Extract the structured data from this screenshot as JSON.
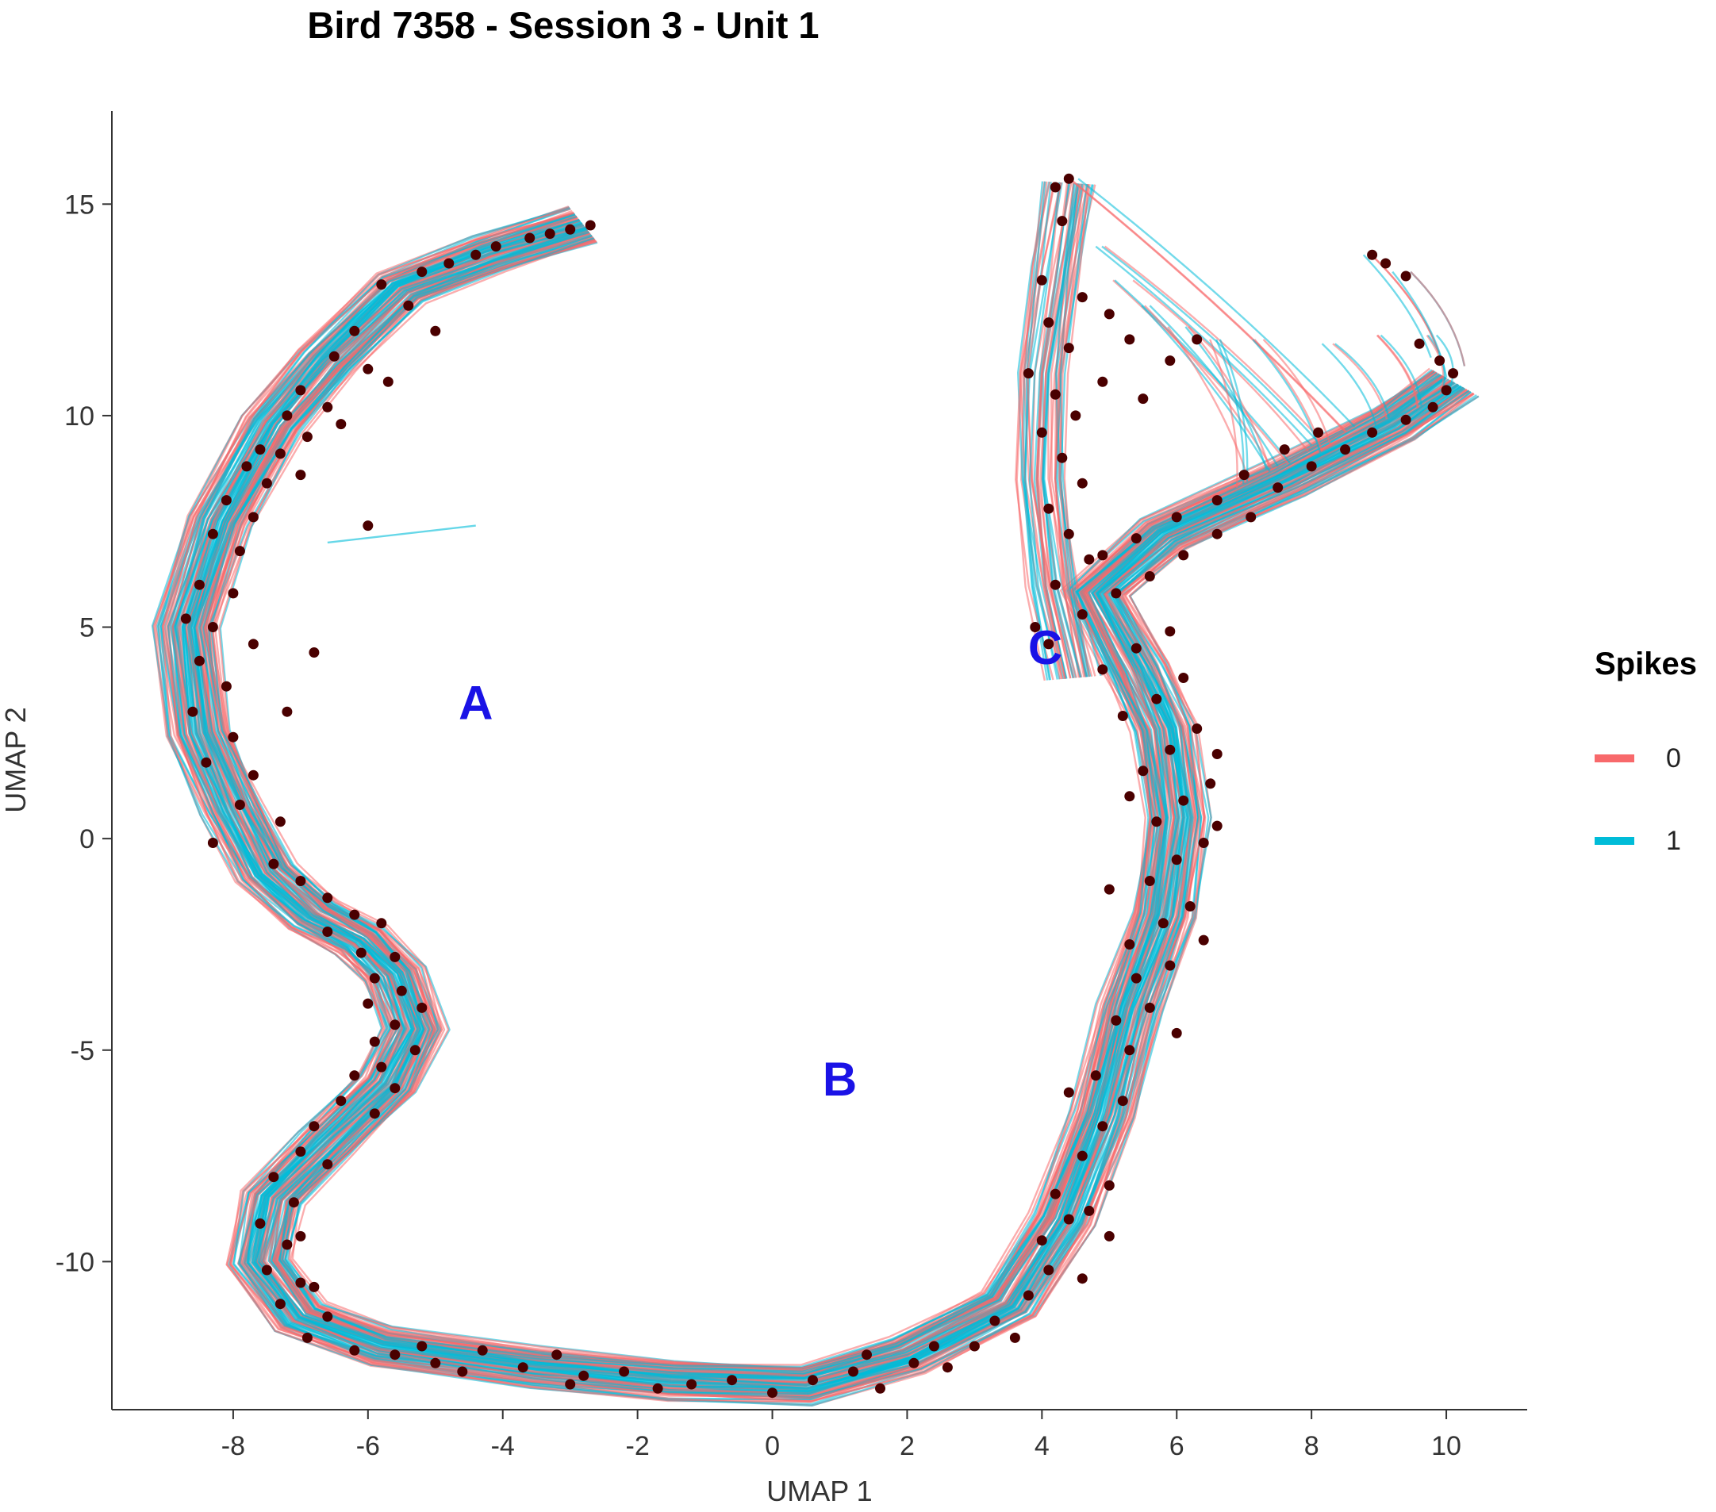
{
  "chart_data": {
    "type": "line",
    "title": "Bird 7358 - Session 3 - Unit 1",
    "xlabel": "UMAP 1",
    "ylabel": "UMAP 2",
    "xlim": [
      -9.8,
      11.2
    ],
    "ylim": [
      -13.5,
      17.2
    ],
    "x_ticks": [
      -8,
      -6,
      -4,
      -2,
      0,
      2,
      4,
      6,
      8,
      10
    ],
    "y_ticks": [
      -10,
      -5,
      0,
      5,
      10,
      15
    ],
    "grid": false,
    "legend": {
      "title": "Spikes",
      "position": "right",
      "entries": [
        {
          "label": "0",
          "color": "#f8696b"
        },
        {
          "label": "1",
          "color": "#00bcd8"
        }
      ]
    },
    "point_color": "#4a0000",
    "trajectory_spread": 0.42,
    "series": [
      {
        "name": "0",
        "color": "#f8696b",
        "path": [
          [
            -2.8,
            14.5
          ],
          [
            -4.2,
            13.8
          ],
          [
            -5.5,
            13.0
          ],
          [
            -6.6,
            11.3
          ],
          [
            -7.4,
            9.8
          ],
          [
            -8.2,
            7.5
          ],
          [
            -8.7,
            5.0
          ],
          [
            -8.5,
            2.5
          ],
          [
            -8.0,
            0.7
          ],
          [
            -7.5,
            -0.8
          ],
          [
            -6.8,
            -1.8
          ],
          [
            -6.1,
            -2.4
          ],
          [
            -5.6,
            -3.2
          ],
          [
            -5.3,
            -4.5
          ],
          [
            -5.7,
            -5.8
          ],
          [
            -6.6,
            -7.2
          ],
          [
            -7.4,
            -8.5
          ],
          [
            -7.6,
            -10.0
          ],
          [
            -7.0,
            -11.3
          ],
          [
            -5.8,
            -12.0
          ],
          [
            -3.5,
            -12.5
          ],
          [
            -1.5,
            -12.8
          ],
          [
            0.5,
            -12.9
          ],
          [
            2.0,
            -12.2
          ],
          [
            3.5,
            -11.0
          ],
          [
            4.3,
            -9.0
          ],
          [
            4.9,
            -6.5
          ],
          [
            5.3,
            -4.0
          ],
          [
            5.8,
            -1.8
          ],
          [
            6.0,
            0.5
          ],
          [
            5.8,
            2.6
          ],
          [
            5.4,
            4.0
          ],
          [
            4.8,
            5.8
          ],
          [
            5.8,
            7.2
          ],
          [
            7.6,
            8.5
          ],
          [
            9.2,
            9.8
          ],
          [
            10.1,
            10.8
          ]
        ]
      },
      {
        "name": "0",
        "color": "#f8696b",
        "path": [
          [
            4.5,
            3.8
          ],
          [
            4.2,
            6.0
          ],
          [
            4.0,
            8.5
          ],
          [
            4.0,
            11.0
          ],
          [
            4.2,
            13.5
          ],
          [
            4.4,
            15.5
          ]
        ]
      },
      {
        "name": "1",
        "color": "#00bcd8",
        "path": [
          [
            -2.8,
            14.5
          ],
          [
            -4.2,
            13.8
          ],
          [
            -5.5,
            13.0
          ],
          [
            -6.6,
            11.3
          ],
          [
            -7.4,
            9.8
          ],
          [
            -8.2,
            7.5
          ],
          [
            -8.7,
            5.0
          ],
          [
            -8.5,
            2.5
          ],
          [
            -8.0,
            0.7
          ],
          [
            -7.5,
            -0.8
          ],
          [
            -6.8,
            -1.8
          ],
          [
            -6.1,
            -2.4
          ],
          [
            -5.6,
            -3.2
          ],
          [
            -5.3,
            -4.5
          ],
          [
            -5.7,
            -5.8
          ],
          [
            -6.6,
            -7.2
          ],
          [
            -7.4,
            -8.5
          ],
          [
            -7.6,
            -10.0
          ],
          [
            -7.0,
            -11.3
          ],
          [
            -5.8,
            -12.0
          ],
          [
            -3.5,
            -12.5
          ],
          [
            -1.5,
            -12.8
          ],
          [
            0.5,
            -12.9
          ],
          [
            2.0,
            -12.2
          ],
          [
            3.5,
            -11.0
          ],
          [
            4.3,
            -9.0
          ],
          [
            4.9,
            -6.5
          ],
          [
            5.3,
            -4.0
          ],
          [
            5.8,
            -1.8
          ],
          [
            6.0,
            0.5
          ],
          [
            5.8,
            2.6
          ],
          [
            5.4,
            4.0
          ],
          [
            4.8,
            5.8
          ],
          [
            5.8,
            7.2
          ],
          [
            7.6,
            8.5
          ],
          [
            9.2,
            9.8
          ],
          [
            10.1,
            10.8
          ]
        ]
      },
      {
        "name": "1",
        "color": "#00bcd8",
        "path": [
          [
            4.5,
            3.8
          ],
          [
            4.2,
            6.0
          ],
          [
            4.0,
            8.5
          ],
          [
            4.0,
            11.0
          ],
          [
            4.2,
            13.5
          ],
          [
            4.4,
            15.5
          ]
        ]
      }
    ],
    "fan_segments": [
      {
        "from": [
          4.4,
          15.6
        ],
        "to": [
          8.5,
          9.6
        ]
      },
      {
        "from": [
          4.8,
          14.0
        ],
        "to": [
          8.0,
          9.3
        ]
      },
      {
        "from": [
          5.2,
          13.2
        ],
        "to": [
          7.8,
          9.0
        ]
      },
      {
        "from": [
          5.6,
          12.6
        ],
        "to": [
          7.5,
          8.8
        ]
      },
      {
        "from": [
          6.0,
          12.1
        ],
        "to": [
          7.2,
          8.6
        ]
      },
      {
        "from": [
          6.6,
          11.8
        ],
        "to": [
          7.0,
          8.4
        ]
      },
      {
        "from": [
          7.2,
          11.8
        ],
        "to": [
          8.2,
          9.2
        ]
      },
      {
        "from": [
          8.2,
          11.7
        ],
        "to": [
          9.0,
          9.8
        ]
      },
      {
        "from": [
          9.0,
          11.9
        ],
        "to": [
          9.6,
          10.2
        ]
      },
      {
        "from": [
          9.8,
          11.9
        ],
        "to": [
          10.0,
          10.6
        ]
      },
      {
        "from": [
          8.9,
          13.8
        ],
        "to": [
          9.9,
          11.5
        ]
      },
      {
        "from": [
          9.3,
          13.4
        ],
        "to": [
          10.1,
          11.0
        ]
      }
    ],
    "stray_segment": {
      "from": [
        -6.6,
        7.0
      ],
      "to": [
        -4.4,
        7.4
      ]
    },
    "spike_points": [
      [
        -2.7,
        14.5
      ],
      [
        -3.0,
        14.4
      ],
      [
        -3.3,
        14.3
      ],
      [
        -3.6,
        14.2
      ],
      [
        -4.1,
        14.0
      ],
      [
        -4.4,
        13.8
      ],
      [
        -4.8,
        13.6
      ],
      [
        -5.2,
        13.4
      ],
      [
        -5.8,
        13.1
      ],
      [
        -5.4,
        12.6
      ],
      [
        -6.2,
        12.0
      ],
      [
        -6.5,
        11.4
      ],
      [
        -6.0,
        11.1
      ],
      [
        -7.0,
        10.6
      ],
      [
        -6.6,
        10.2
      ],
      [
        -7.2,
        10.0
      ],
      [
        -6.4,
        9.8
      ],
      [
        -6.9,
        9.5
      ],
      [
        -7.6,
        9.2
      ],
      [
        -7.3,
        9.1
      ],
      [
        -7.8,
        8.8
      ],
      [
        -7.0,
        8.6
      ],
      [
        -7.5,
        8.4
      ],
      [
        -8.1,
        8.0
      ],
      [
        -7.7,
        7.6
      ],
      [
        -8.3,
        7.2
      ],
      [
        -7.9,
        6.8
      ],
      [
        -8.5,
        6.0
      ],
      [
        -8.0,
        5.8
      ],
      [
        -8.7,
        5.2
      ],
      [
        -8.3,
        5.0
      ],
      [
        -7.7,
        4.6
      ],
      [
        -8.5,
        4.2
      ],
      [
        -8.1,
        3.6
      ],
      [
        -8.6,
        3.0
      ],
      [
        -8.0,
        2.4
      ],
      [
        -8.4,
        1.8
      ],
      [
        -7.7,
        1.5
      ],
      [
        -7.9,
        0.8
      ],
      [
        -7.3,
        0.4
      ],
      [
        -8.3,
        -0.1
      ],
      [
        -7.4,
        -0.6
      ],
      [
        -7.0,
        -1.0
      ],
      [
        -6.6,
        -1.4
      ],
      [
        -6.2,
        -1.8
      ],
      [
        -6.6,
        -2.2
      ],
      [
        -5.8,
        -2.0
      ],
      [
        -6.1,
        -2.7
      ],
      [
        -5.6,
        -2.8
      ],
      [
        -5.9,
        -3.3
      ],
      [
        -5.5,
        -3.6
      ],
      [
        -6.0,
        -3.9
      ],
      [
        -5.2,
        -4.0
      ],
      [
        -5.6,
        -4.4
      ],
      [
        -5.9,
        -4.8
      ],
      [
        -5.3,
        -5.0
      ],
      [
        -5.8,
        -5.4
      ],
      [
        -6.2,
        -5.6
      ],
      [
        -5.6,
        -5.9
      ],
      [
        -6.4,
        -6.2
      ],
      [
        -5.9,
        -6.5
      ],
      [
        -6.8,
        -6.8
      ],
      [
        -7.0,
        -7.4
      ],
      [
        -6.6,
        -7.7
      ],
      [
        -7.4,
        -8.0
      ],
      [
        -7.1,
        -8.6
      ],
      [
        -7.6,
        -9.1
      ],
      [
        -7.2,
        -9.6
      ],
      [
        -7.5,
        -10.2
      ],
      [
        -7.0,
        -10.5
      ],
      [
        -7.3,
        -11.0
      ],
      [
        -6.6,
        -11.3
      ],
      [
        -6.9,
        -11.8
      ],
      [
        -6.2,
        -12.1
      ],
      [
        -5.6,
        -12.2
      ],
      [
        -5.0,
        -12.4
      ],
      [
        -4.3,
        -12.1
      ],
      [
        -4.6,
        -12.6
      ],
      [
        -3.7,
        -12.5
      ],
      [
        -3.2,
        -12.2
      ],
      [
        -2.8,
        -12.7
      ],
      [
        -2.2,
        -12.6
      ],
      [
        -1.7,
        -13.0
      ],
      [
        -1.2,
        -12.9
      ],
      [
        -0.6,
        -12.8
      ],
      [
        0.0,
        -13.1
      ],
      [
        0.6,
        -12.8
      ],
      [
        1.2,
        -12.6
      ],
      [
        1.6,
        -13.0
      ],
      [
        2.1,
        -12.4
      ],
      [
        2.6,
        -12.5
      ],
      [
        3.0,
        -12.0
      ],
      [
        3.3,
        -11.4
      ],
      [
        3.6,
        -11.8
      ],
      [
        3.8,
        -10.8
      ],
      [
        4.1,
        -10.2
      ],
      [
        4.0,
        -9.5
      ],
      [
        4.4,
        -9.0
      ],
      [
        4.2,
        -8.4
      ],
      [
        4.7,
        -8.8
      ],
      [
        5.0,
        -8.2
      ],
      [
        4.6,
        -7.5
      ],
      [
        4.9,
        -6.8
      ],
      [
        5.2,
        -6.2
      ],
      [
        4.8,
        -5.6
      ],
      [
        5.3,
        -5.0
      ],
      [
        5.1,
        -4.3
      ],
      [
        5.6,
        -4.0
      ],
      [
        5.4,
        -3.3
      ],
      [
        5.9,
        -3.0
      ],
      [
        5.3,
        -2.5
      ],
      [
        5.8,
        -2.0
      ],
      [
        6.2,
        -1.6
      ],
      [
        5.6,
        -1.0
      ],
      [
        6.0,
        -0.5
      ],
      [
        6.4,
        -0.1
      ],
      [
        5.7,
        0.4
      ],
      [
        6.1,
        0.9
      ],
      [
        6.5,
        1.3
      ],
      [
        5.5,
        1.6
      ],
      [
        5.9,
        2.1
      ],
      [
        6.3,
        2.6
      ],
      [
        5.2,
        2.9
      ],
      [
        5.7,
        3.3
      ],
      [
        6.1,
        3.8
      ],
      [
        4.9,
        4.0
      ],
      [
        5.4,
        4.5
      ],
      [
        5.9,
        4.9
      ],
      [
        4.6,
        5.3
      ],
      [
        5.1,
        5.8
      ],
      [
        5.6,
        6.2
      ],
      [
        4.9,
        6.7
      ],
      [
        6.1,
        6.7
      ],
      [
        5.4,
        7.1
      ],
      [
        6.6,
        7.2
      ],
      [
        6.0,
        7.6
      ],
      [
        7.1,
        7.6
      ],
      [
        6.6,
        8.0
      ],
      [
        7.5,
        8.3
      ],
      [
        7.0,
        8.6
      ],
      [
        8.0,
        8.8
      ],
      [
        7.6,
        9.2
      ],
      [
        8.5,
        9.2
      ],
      [
        8.1,
        9.6
      ],
      [
        8.9,
        9.6
      ],
      [
        9.4,
        9.9
      ],
      [
        9.8,
        10.2
      ],
      [
        10.0,
        10.6
      ],
      [
        10.1,
        11.0
      ],
      [
        9.9,
        11.3
      ],
      [
        9.6,
        11.7
      ],
      [
        9.4,
        13.3
      ],
      [
        9.1,
        13.6
      ],
      [
        8.9,
        13.8
      ],
      [
        4.2,
        15.4
      ],
      [
        4.4,
        15.6
      ],
      [
        4.3,
        14.6
      ],
      [
        4.0,
        13.2
      ],
      [
        4.6,
        12.8
      ],
      [
        4.1,
        12.2
      ],
      [
        4.4,
        11.6
      ],
      [
        3.8,
        11.0
      ],
      [
        4.2,
        10.5
      ],
      [
        4.5,
        10.0
      ],
      [
        4.0,
        9.6
      ],
      [
        4.3,
        9.0
      ],
      [
        4.6,
        8.4
      ],
      [
        4.1,
        7.8
      ],
      [
        4.4,
        7.2
      ],
      [
        4.7,
        6.6
      ],
      [
        4.2,
        6.0
      ],
      [
        5.0,
        12.4
      ],
      [
        5.3,
        11.8
      ],
      [
        5.9,
        11.3
      ],
      [
        4.9,
        10.8
      ],
      [
        5.5,
        10.4
      ],
      [
        6.3,
        11.8
      ],
      [
        3.9,
        5.0
      ],
      [
        4.1,
        4.6
      ],
      [
        -6.0,
        7.4
      ],
      [
        -5.0,
        12.0
      ],
      [
        -5.7,
        10.8
      ],
      [
        -6.8,
        4.4
      ],
      [
        -7.2,
        3.0
      ],
      [
        -7.0,
        -9.4
      ],
      [
        -6.8,
        -10.6
      ],
      [
        -5.2,
        -12.0
      ],
      [
        -3.0,
        -12.9
      ],
      [
        1.4,
        -12.2
      ],
      [
        2.4,
        -12.0
      ],
      [
        4.6,
        -10.4
      ],
      [
        5.0,
        -9.4
      ],
      [
        4.4,
        -6.0
      ],
      [
        6.0,
        -4.6
      ],
      [
        6.4,
        -2.4
      ],
      [
        6.6,
        0.3
      ],
      [
        6.6,
        2.0
      ],
      [
        5.0,
        -1.2
      ],
      [
        5.3,
        1.0
      ]
    ]
  },
  "annotations": [
    {
      "text": "A",
      "x": -4.4,
      "y": 3.2,
      "color": "#1a12e6"
    },
    {
      "text": "B",
      "x": 1.0,
      "y": -5.7,
      "color": "#1a12e6"
    },
    {
      "text": "C",
      "x": 4.05,
      "y": 4.5,
      "color": "#1a12e6"
    }
  ]
}
